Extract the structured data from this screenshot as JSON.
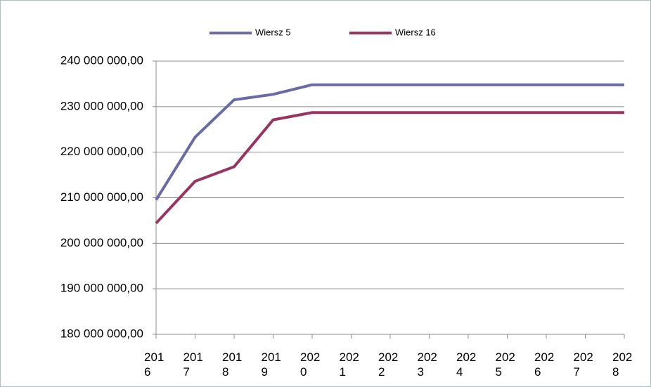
{
  "chart_data": {
    "type": "line",
    "categories": [
      "2016",
      "2017",
      "2018",
      "2019",
      "2020",
      "2021",
      "2022",
      "2023",
      "2024",
      "2025",
      "2026",
      "2027",
      "2028"
    ],
    "series": [
      {
        "name": "Wiersz 5",
        "color": "#6a6aa6",
        "values": [
          209500000,
          223300000,
          231500000,
          232700000,
          234800000,
          234800000,
          234800000,
          234800000,
          234800000,
          234800000,
          234800000,
          234800000,
          234800000
        ]
      },
      {
        "name": "Wiersz 16",
        "color": "#993462",
        "values": [
          204400000,
          213600000,
          216800000,
          227100000,
          228700000,
          228700000,
          228700000,
          228700000,
          228700000,
          228700000,
          228700000,
          228700000,
          228700000
        ]
      }
    ],
    "ylim": [
      180000000,
      240000000
    ],
    "yticks": [
      {
        "value": 180000000,
        "label": "180 000 000,00"
      },
      {
        "value": 190000000,
        "label": "190 000 000,00"
      },
      {
        "value": 200000000,
        "label": "200 000 000,00"
      },
      {
        "value": 210000000,
        "label": "210 000 000,00"
      },
      {
        "value": 220000000,
        "label": "220 000 000,00"
      },
      {
        "value": 230000000,
        "label": "230 000 000,00"
      },
      {
        "value": 240000000,
        "label": "240 000 000,00"
      }
    ],
    "grid": true,
    "legend": "top"
  }
}
